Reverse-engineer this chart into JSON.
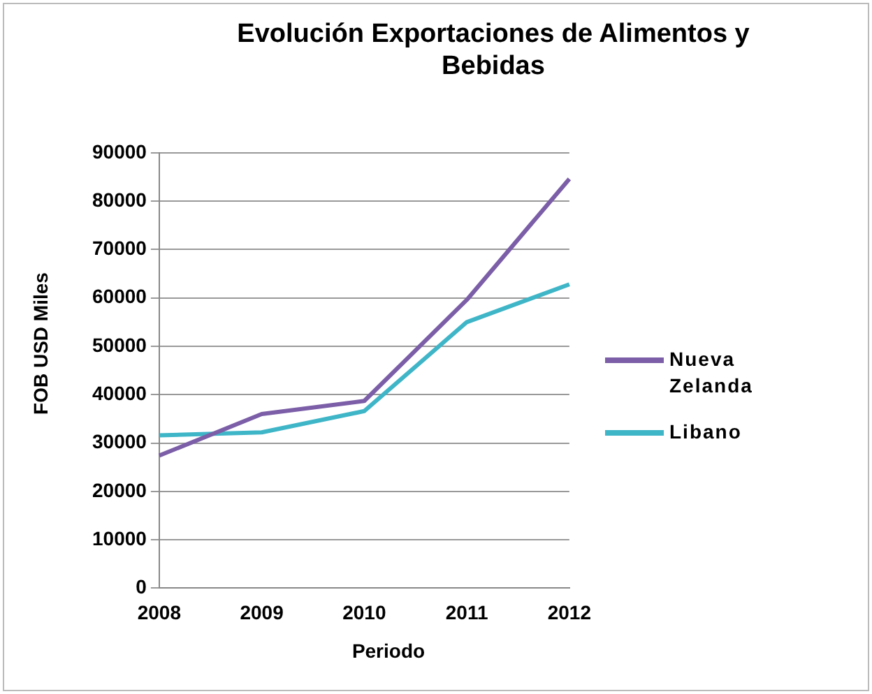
{
  "chart_data": {
    "type": "line",
    "title": "Evolución Exportaciones de Alimentos y Bebidas",
    "xlabel": "Periodo",
    "ylabel": "FOB USD Miles",
    "categories": [
      "2008",
      "2009",
      "2010",
      "2011",
      "2012"
    ],
    "series": [
      {
        "name": "Nueva Zelanda",
        "color": "#7b5ea7",
        "values": [
          27400,
          36000,
          38700,
          59600,
          84600
        ]
      },
      {
        "name": "Libano",
        "color": "#3fb5c8",
        "values": [
          31600,
          32200,
          36600,
          55000,
          62800
        ]
      }
    ],
    "ylim": [
      0,
      90000
    ],
    "yticks": [
      0,
      10000,
      20000,
      30000,
      40000,
      50000,
      60000,
      70000,
      80000,
      90000
    ],
    "grid": "y",
    "legend": "right",
    "marker": "none",
    "line_style": "solid"
  }
}
